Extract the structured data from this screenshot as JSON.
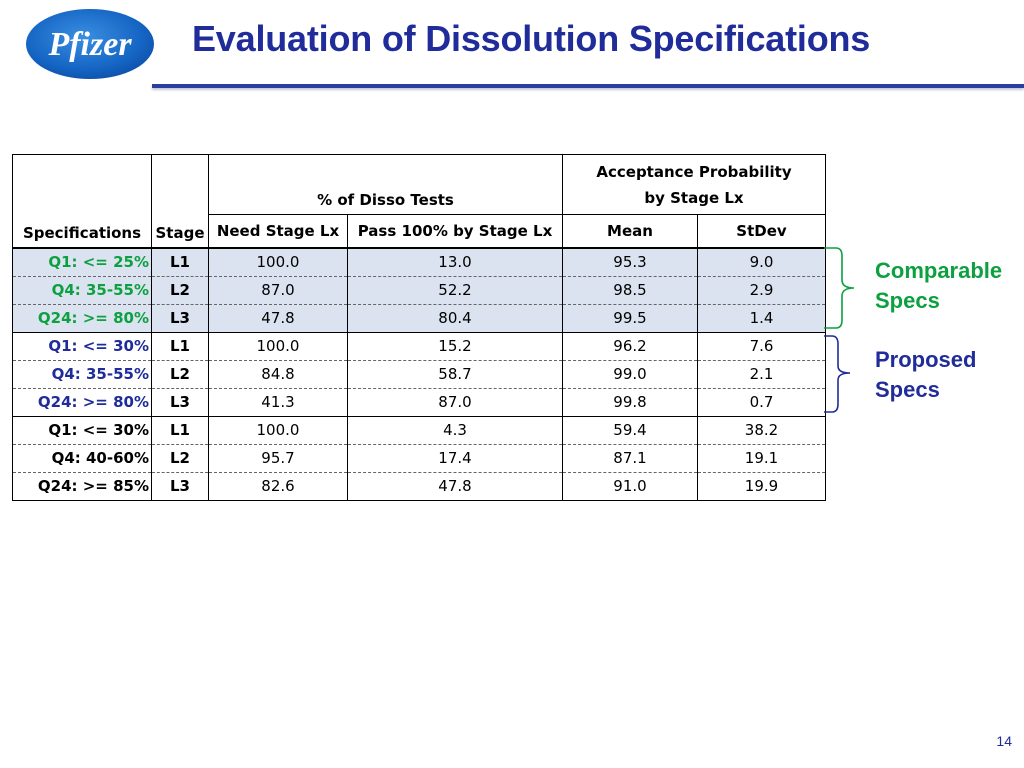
{
  "header": {
    "logo_text": "Pfizer",
    "title": "Evaluation of Dissolution Specifications"
  },
  "table": {
    "headers": {
      "specifications": "Specifications",
      "stage": "Stage",
      "disso_group": "% of Disso Tests",
      "acceptance_group_line1": "Acceptance Probability",
      "acceptance_group_line2": "by Stage Lx",
      "need_stage": "Need Stage Lx",
      "pass_100": "Pass 100% by Stage Lx",
      "mean": "Mean",
      "stdev": "StDev"
    },
    "groups": [
      {
        "color": "#0ca040",
        "rows": [
          {
            "spec": "Q1: <= 25%",
            "stage": "L1",
            "need": "100.0",
            "pass": "13.0",
            "mean": "95.3",
            "stdev": "9.0"
          },
          {
            "spec": "Q4: 35-55%",
            "stage": "L2",
            "need": "87.0",
            "pass": "52.2",
            "mean": "98.5",
            "stdev": "2.9"
          },
          {
            "spec": "Q24: >= 80%",
            "stage": "L3",
            "need": "47.8",
            "pass": "80.4",
            "mean": "99.5",
            "stdev": "1.4"
          }
        ]
      },
      {
        "color": "#1f2c99",
        "rows": [
          {
            "spec": "Q1: <= 30%",
            "stage": "L1",
            "need": "100.0",
            "pass": "15.2",
            "mean": "96.2",
            "stdev": "7.6"
          },
          {
            "spec": "Q4: 35-55%",
            "stage": "L2",
            "need": "84.8",
            "pass": "58.7",
            "mean": "99.0",
            "stdev": "2.1"
          },
          {
            "spec": "Q24: >= 80%",
            "stage": "L3",
            "need": "41.3",
            "pass": "87.0",
            "mean": "99.8",
            "stdev": "0.7"
          }
        ]
      },
      {
        "color": "#000000",
        "rows": [
          {
            "spec": "Q1: <= 30%",
            "stage": "L1",
            "need": "100.0",
            "pass": "4.3",
            "mean": "59.4",
            "stdev": "38.2"
          },
          {
            "spec": "Q4: 40-60%",
            "stage": "L2",
            "need": "95.7",
            "pass": "17.4",
            "mean": "87.1",
            "stdev": "19.1"
          },
          {
            "spec": "Q24: >= 85%",
            "stage": "L3",
            "need": "82.6",
            "pass": "47.8",
            "mean": "91.0",
            "stdev": "19.9"
          }
        ]
      }
    ]
  },
  "annotations": {
    "comparable_line1": "Comparable",
    "comparable_line2": "Specs",
    "proposed_line1": "Proposed",
    "proposed_line2": "Specs",
    "comparable_color": "#0ca040",
    "proposed_color": "#1f2c99"
  },
  "footer": {
    "page_number": "14"
  }
}
